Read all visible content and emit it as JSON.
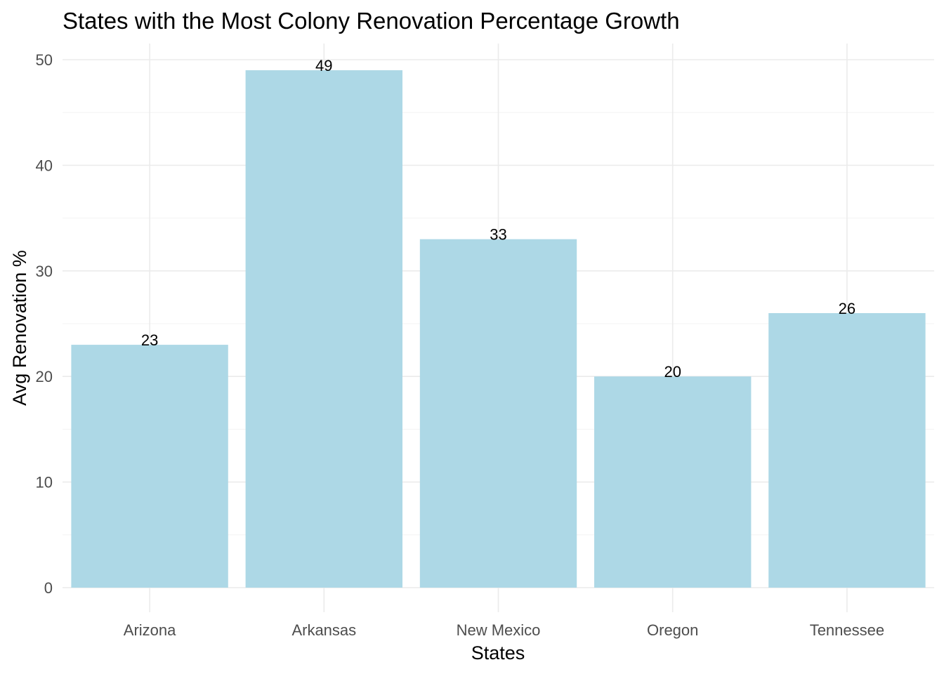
{
  "chart_data": {
    "type": "bar",
    "title": "States with the Most Colony Renovation Percentage Growth",
    "xlabel": "States",
    "ylabel": "Avg Renovation %",
    "categories": [
      "Arizona",
      "Arkansas",
      "New Mexico",
      "Oregon",
      "Tennessee"
    ],
    "values": [
      23,
      49,
      33,
      20,
      26
    ],
    "ylim": [
      0,
      50
    ],
    "yticks": [
      0,
      10,
      20,
      30,
      40,
      50
    ],
    "grid": true,
    "legend": "none",
    "colors": {
      "bar": "#add8e6",
      "grid_major": "#ebebeb",
      "grid_minor": "#f3f3f3"
    }
  }
}
